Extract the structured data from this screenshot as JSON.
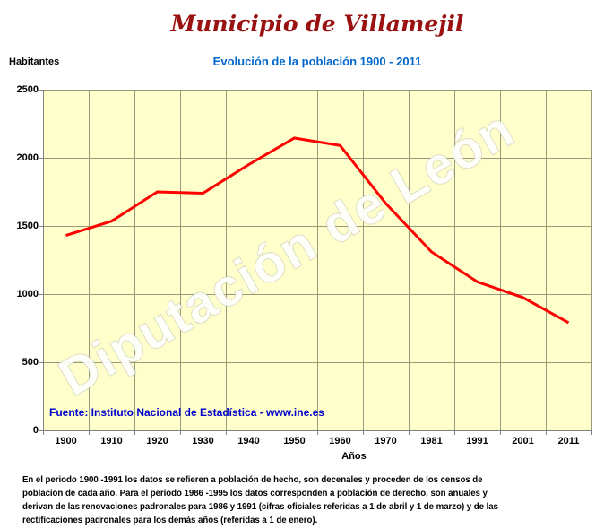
{
  "title": "Municipio de Villamejil",
  "subtitle": "Evolución de la población 1900 - 2011",
  "y_axis_title": "Habitantes",
  "x_axis_title": "Años",
  "source_note": "Fuente: Instituto Nacional de Estadística - www.ine.es",
  "watermark": "Diputación de León",
  "footer": [
    "En el periodo 1900 -1991 los datos se refieren a población de hecho, son decenales y proceden de los censos de",
    "población de cada año. Para el periodo 1986 -1995 los datos corresponden a población de derecho, son anuales y",
    "derivan de las renovaciones padronales para 1986 y 1991 (cifras oficiales referidas a 1 de abril y 1 de marzo) y de las",
    "rectificaciones padronales para los demás años (referidas a 1 de enero)."
  ],
  "colors": {
    "title": "#991111",
    "subtitle": "#0066CC",
    "source": "#0000CC",
    "plot_bg": "#FFFFCC",
    "grid": "#99997E",
    "axis": "#808080",
    "line": "#FF0000",
    "watermark_fill": "#FFFFFF",
    "watermark_stroke": "#B5B5A5"
  },
  "chart_data": {
    "type": "line",
    "title": "Evolución de la población 1900 - 2011",
    "xlabel": "Años",
    "ylabel": "Habitantes",
    "categories": [
      "1900",
      "1910",
      "1920",
      "1930",
      "1940",
      "1950",
      "1960",
      "1970",
      "1981",
      "1991",
      "2001",
      "2011"
    ],
    "values": [
      1430,
      1535,
      1750,
      1740,
      1950,
      2145,
      2090,
      1665,
      1310,
      1090,
      975,
      790
    ],
    "ylim": [
      0,
      2500
    ],
    "y_ticks": [
      0,
      500,
      1000,
      1500,
      2000,
      2500
    ],
    "grid": true,
    "legend_position": "none",
    "line_color": "#FF0000"
  }
}
